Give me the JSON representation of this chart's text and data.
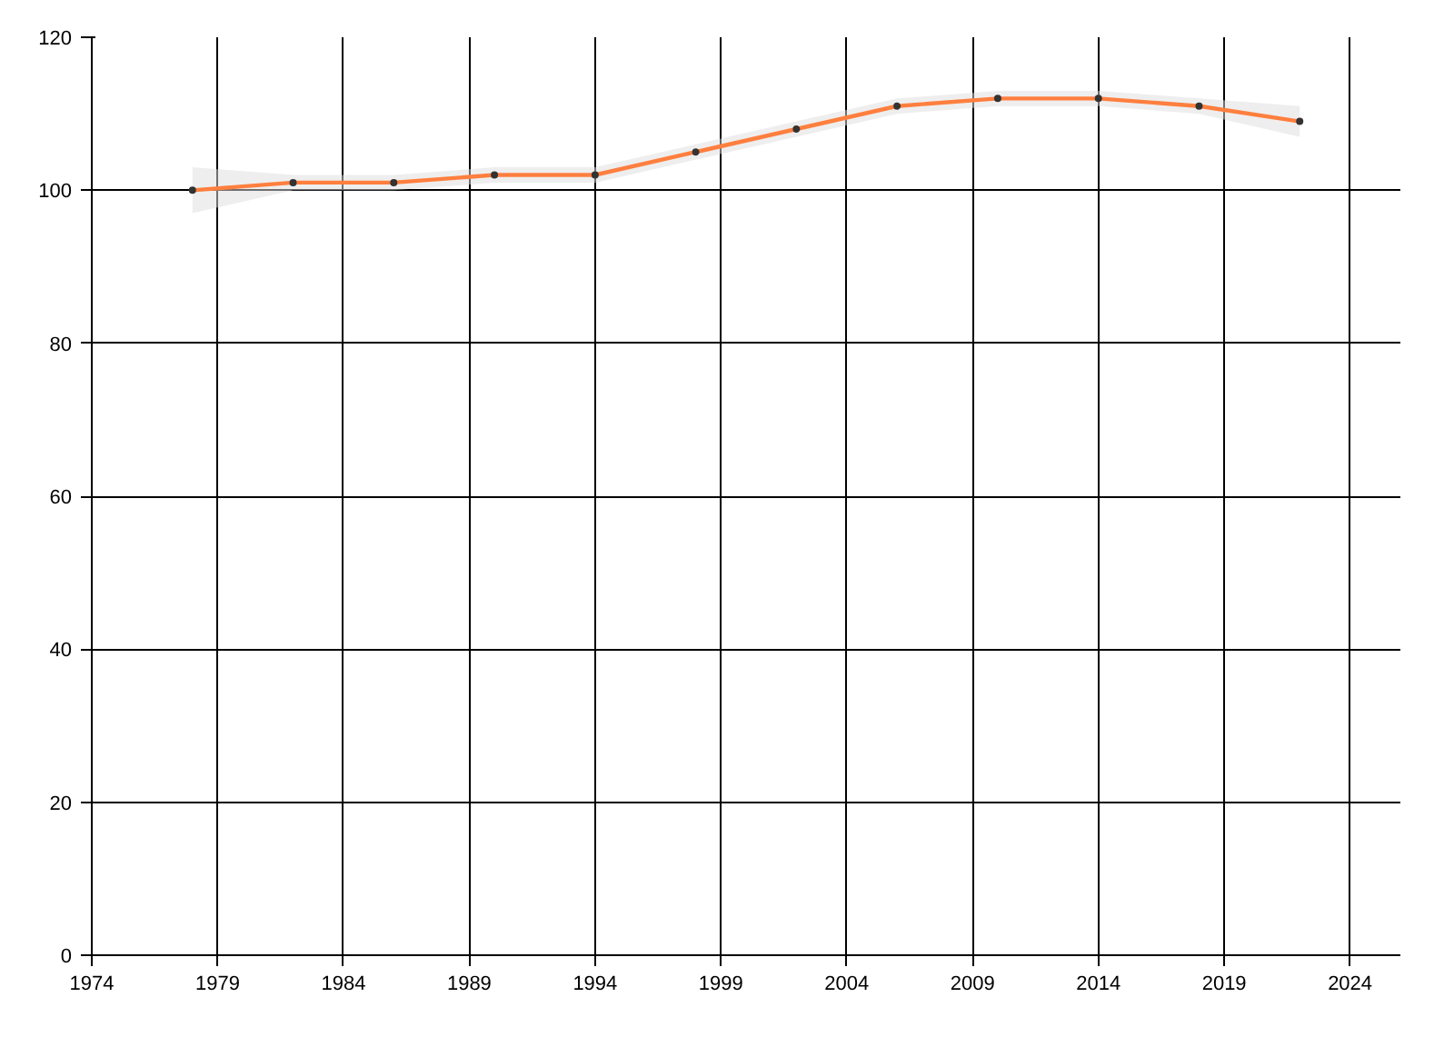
{
  "chart_data": {
    "type": "line",
    "x": [
      1978,
      1982,
      1986,
      1990,
      1994,
      1998,
      2002,
      2006,
      2010,
      2014,
      2018,
      2022
    ],
    "series": [
      {
        "color": "#ff7f3f",
        "values": [
          100,
          101,
          101,
          102,
          102,
          105,
          108,
          111,
          112,
          112,
          111,
          109
        ],
        "lower": [
          97,
          100,
          100,
          101,
          101,
          104,
          107,
          110,
          111,
          111,
          110,
          107
        ],
        "upper": [
          103,
          102,
          102,
          103,
          103,
          106,
          109,
          112,
          113,
          113,
          112,
          111
        ]
      }
    ],
    "xlim": [
      1974,
      2026
    ],
    "xticks": [
      1974,
      1979,
      1984,
      1989,
      1994,
      1999,
      2004,
      2009,
      2014,
      2019,
      2024
    ],
    "ylim": [
      0,
      120
    ],
    "yticks": [
      0,
      20,
      40,
      60,
      80,
      100,
      120
    ],
    "grid": true,
    "marker": "circle",
    "line_style": "solid"
  }
}
